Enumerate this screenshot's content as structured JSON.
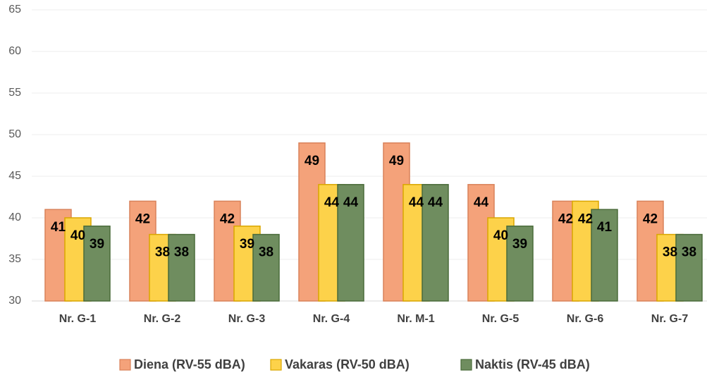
{
  "chart_data": {
    "type": "bar",
    "categories": [
      "Nr. G-1",
      "Nr. G-2",
      "Nr. G-3",
      "Nr. G-4",
      "Nr. M-1",
      "Nr. G-5",
      "Nr. G-6",
      "Nr. G-7"
    ],
    "series": [
      {
        "name": "Diena (RV-55 dBA)",
        "color": "#f4a27a",
        "values": [
          41,
          42,
          42,
          49,
          49,
          44,
          42,
          42
        ]
      },
      {
        "name": "Vakaras (RV-50 dBA)",
        "color": "#fdd24a",
        "values": [
          40,
          38,
          39,
          44,
          44,
          40,
          42,
          38
        ]
      },
      {
        "name": "Naktis (RV-45 dBA)",
        "color": "#6f8d5f",
        "values": [
          39,
          38,
          38,
          44,
          44,
          39,
          41,
          38
        ]
      }
    ],
    "ylim": [
      30,
      65
    ],
    "yticks": [
      30,
      35,
      40,
      45,
      50,
      55,
      60,
      65
    ],
    "grid": true,
    "legend": "bottom"
  }
}
